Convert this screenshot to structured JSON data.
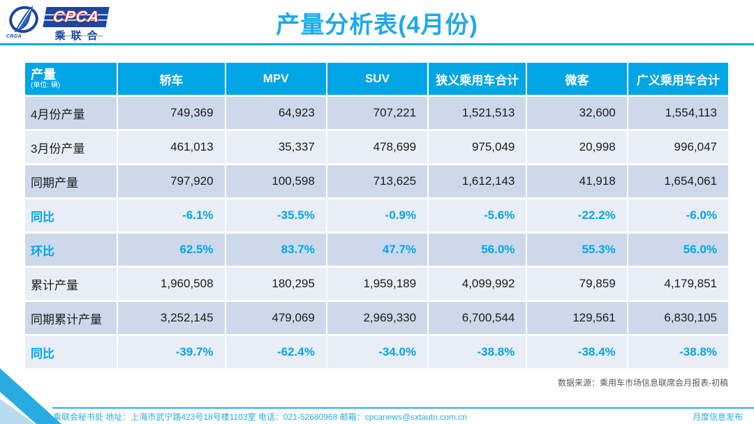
{
  "logo": {
    "acronym": "CPCA",
    "chinese_name": "乘联合",
    "emblem_text": "CRDA"
  },
  "title": "产量分析表(4月份)",
  "table": {
    "corner": {
      "title": "产量",
      "unit": "(单位: 辆)"
    },
    "columns": [
      "轿车",
      "MPV",
      "SUV",
      "狭义乘用车合计",
      "微客",
      "广义乘用车合计"
    ],
    "rows": [
      {
        "label": "4月份产量",
        "type": "number",
        "values": [
          "749,369",
          "64,923",
          "707,221",
          "1,521,513",
          "32,600",
          "1,554,113"
        ]
      },
      {
        "label": "3月份产量",
        "type": "number",
        "values": [
          "461,013",
          "35,337",
          "478,699",
          "975,049",
          "20,998",
          "996,047"
        ]
      },
      {
        "label": "同期产量",
        "type": "number",
        "values": [
          "797,920",
          "100,598",
          "713,625",
          "1,612,143",
          "41,918",
          "1,654,061"
        ]
      },
      {
        "label": "同比",
        "type": "percent",
        "values": [
          "-6.1%",
          "-35.5%",
          "-0.9%",
          "-5.6%",
          "-22.2%",
          "-6.0%"
        ]
      },
      {
        "label": "环比",
        "type": "percent",
        "values": [
          "62.5%",
          "83.7%",
          "47.7%",
          "56.0%",
          "55.3%",
          "56.0%"
        ]
      },
      {
        "label": "累计产量",
        "type": "number",
        "values": [
          "1,960,508",
          "180,295",
          "1,959,189",
          "4,099,992",
          "79,859",
          "4,179,851"
        ]
      },
      {
        "label": "同期累计产量",
        "type": "number",
        "values": [
          "3,252,145",
          "479,069",
          "2,969,330",
          "6,700,544",
          "129,561",
          "6,830,105"
        ]
      },
      {
        "label": "同比",
        "type": "percent",
        "values": [
          "-39.7%",
          "-62.4%",
          "-34.0%",
          "-38.8%",
          "-38.4%",
          "-38.8%"
        ]
      }
    ],
    "source": "数据来源：乘用车市场信息联席会月报表-初稿"
  },
  "footer": {
    "left": "乘联会秘书处   地址：上海市武宁路423号18号楼1103室   电话：021-52680968    邮箱：cpcanews@sxtauto.com.cn",
    "right": "月度信息发布"
  },
  "colors": {
    "accent_cyan": "#1ca9ea",
    "header_bg": "#00a5e5",
    "percent_text": "#00a5e9",
    "row_dark": "#cdd8ea",
    "row_light": "#e9edf6",
    "footer_text": "#29abe2",
    "logo_navy": "#1a47a0",
    "logo_red": "#d01f26"
  }
}
